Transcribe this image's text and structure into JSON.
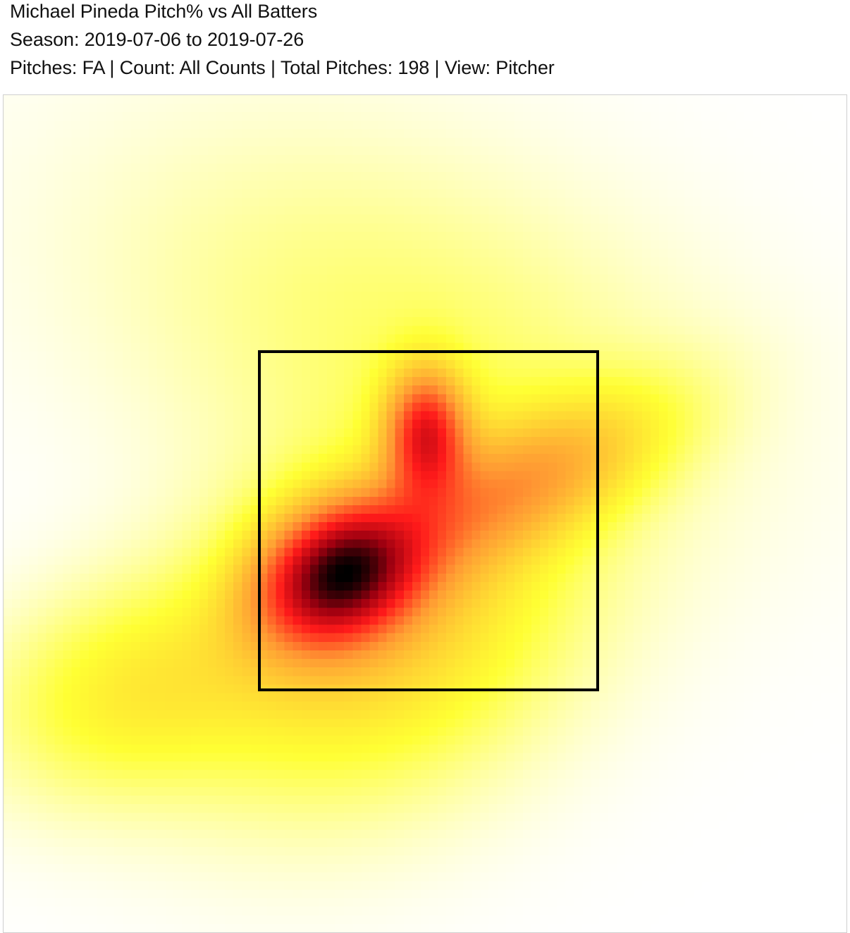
{
  "header": {
    "title": "Michael Pineda Pitch% vs All Batters",
    "season": "Season: 2019-07-06 to 2019-07-26",
    "filters": "Pitches: FA | Count: All Counts | Total Pitches: 198 | View: Pitcher"
  },
  "chart_data": {
    "type": "heatmap",
    "title": "Michael Pineda Pitch% vs All Batters",
    "subtitle": "Season: 2019-07-06 to 2019-07-26",
    "filters": {
      "pitches": "FA",
      "count": "All Counts",
      "total_pitches": 198,
      "view": "Pitcher"
    },
    "colormap": [
      "#ffffff",
      "#ffff33",
      "#ff9933",
      "#ff1a1a",
      "#a00010",
      "#000000"
    ],
    "hotspots": [
      {
        "zone": "middle-inner-low",
        "intensity": 1.0
      },
      {
        "zone": "up-middle",
        "intensity": 0.72
      },
      {
        "zone": "middle-away",
        "intensity": 0.38
      },
      {
        "zone": "low-outside-left",
        "intensity": 0.22
      }
    ],
    "strike_zone": true,
    "grid": false,
    "legend": "none"
  },
  "colors": {
    "strike_zone_border": "#000000",
    "frame_border": "#cfcfcf",
    "background": "#ffffff"
  }
}
